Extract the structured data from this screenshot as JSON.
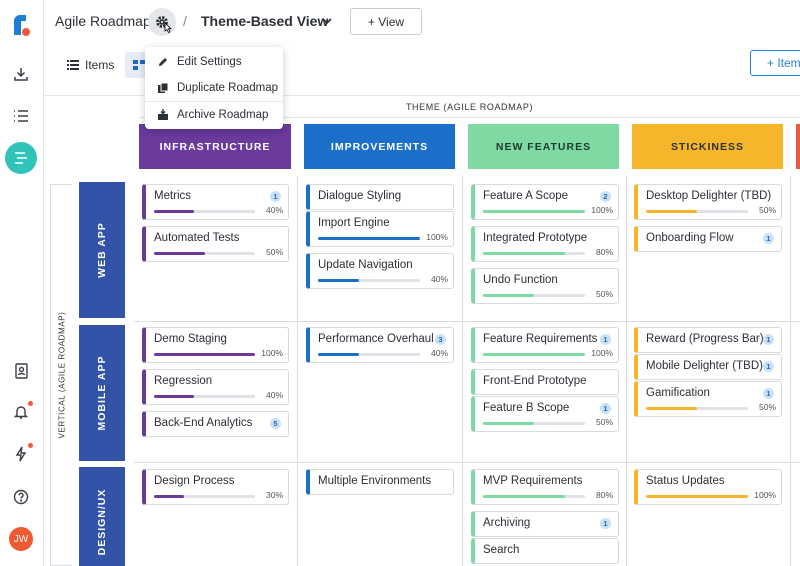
{
  "header": {
    "app_title": "Agile Roadmap",
    "separator": "/",
    "view_name": "Theme-Based View",
    "add_view_label": "+ View"
  },
  "toolbar": {
    "items_tab": "Items",
    "add_item_label": "+ Item"
  },
  "menu": [
    {
      "label": "Edit Settings",
      "icon": "pencil-icon"
    },
    {
      "label": "Duplicate Roadmap",
      "icon": "copy-icon"
    },
    {
      "label": "Archive Roadmap",
      "icon": "archive-icon"
    }
  ],
  "rail": {
    "avatar_initials": "JW"
  },
  "board": {
    "theme_header": "THEME (AGILE ROADMAP)",
    "vertical_header": "VERTICAL (AGILE ROADMAP)",
    "columns": [
      {
        "label": "INFRASTRUCTURE",
        "color": "#6a3a9d"
      },
      {
        "label": "IMPROVEMENTS",
        "color": "#1b6fc9"
      },
      {
        "label": "NEW FEATURES",
        "color": "#7ed9a3"
      },
      {
        "label": "STICKINESS",
        "color": "#f6b62c"
      },
      {
        "label": "",
        "color": "#e85a3e"
      }
    ],
    "rows": [
      {
        "label": "WEB APP"
      },
      {
        "label": "MOBILE APP"
      },
      {
        "label": "DESIGN/UX"
      }
    ],
    "cells": [
      [
        [
          {
            "title": "Metrics",
            "badge": "1",
            "progress": 40,
            "pct_label": "40%"
          },
          {
            "title": "Automated Tests",
            "progress": 50,
            "pct_label": "50%"
          }
        ],
        [
          {
            "title": "Dialogue Styling"
          },
          {
            "title": "Import Engine",
            "progress": 100,
            "pct_label": "100%"
          },
          {
            "title": "Update Navigation",
            "progress": 40,
            "pct_label": "40%"
          }
        ],
        [
          {
            "title": "Feature A Scope",
            "badge": "2",
            "progress": 100,
            "pct_label": "100%"
          },
          {
            "title": "Integrated Prototype",
            "progress": 80,
            "pct_label": "80%"
          },
          {
            "title": "Undo Function",
            "progress": 50,
            "pct_label": "50%"
          }
        ],
        [
          {
            "title": "Desktop Delighter (TBD)",
            "progress": 50,
            "pct_label": "50%"
          },
          {
            "title": "Onboarding Flow",
            "badge": "1"
          }
        ]
      ],
      [
        [
          {
            "title": "Demo Staging",
            "progress": 100,
            "pct_label": "100%"
          },
          {
            "title": "Regression",
            "progress": 40,
            "pct_label": "40%"
          },
          {
            "title": "Back-End Analytics",
            "badge": "5"
          }
        ],
        [
          {
            "title": "Performance Overhaul",
            "badge": "3",
            "progress": 40,
            "pct_label": "40%"
          }
        ],
        [
          {
            "title": "Feature Requirements",
            "badge": "1",
            "progress": 100,
            "pct_label": "100%"
          },
          {
            "title": "Front-End Prototype"
          },
          {
            "title": "Feature B Scope",
            "badge": "1",
            "progress": 50,
            "pct_label": "50%"
          }
        ],
        [
          {
            "title": "Reward (Progress Bar)",
            "badge": "1"
          },
          {
            "title": "Mobile Delighter (TBD)",
            "badge": "1"
          },
          {
            "title": "Gamification",
            "badge": "1",
            "progress": 50,
            "pct_label": "50%"
          }
        ]
      ],
      [
        [
          {
            "title": "Design Process",
            "progress": 30,
            "pct_label": "30%"
          }
        ],
        [
          {
            "title": "Multiple Environments"
          }
        ],
        [
          {
            "title": "MVP Requirements",
            "progress": 80,
            "pct_label": "80%"
          },
          {
            "title": "Archiving",
            "badge": "1"
          },
          {
            "title": "Search"
          }
        ],
        [
          {
            "title": "Status Updates",
            "progress": 100,
            "pct_label": "100%"
          }
        ]
      ]
    ]
  }
}
